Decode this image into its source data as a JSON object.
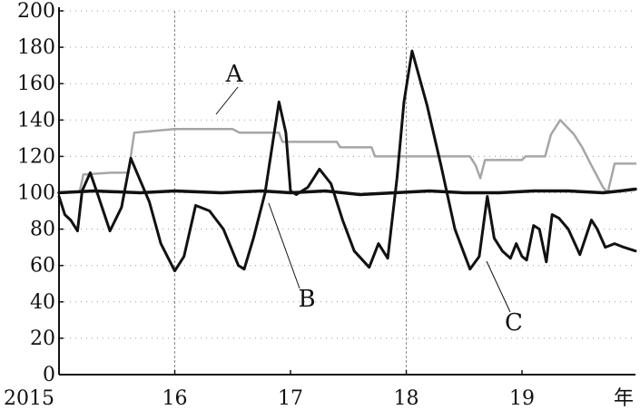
{
  "chart_data": {
    "type": "line",
    "xlabel": "年",
    "ylabel": "",
    "ylim": [
      0,
      200
    ],
    "xlim": [
      2015.0,
      2019.98
    ],
    "y_ticks": [
      "0",
      "20",
      "40",
      "60",
      "80",
      "100",
      "120",
      "140",
      "160",
      "180",
      "200"
    ],
    "x_ticks": [
      {
        "value": 2015,
        "label": "2015"
      },
      {
        "value": 2016,
        "label": "16"
      },
      {
        "value": 2017,
        "label": "17"
      },
      {
        "value": 2018,
        "label": "18"
      },
      {
        "value": 2019,
        "label": "19"
      }
    ],
    "x_axis_title": "年",
    "vertical_gridlines_at": [
      2016,
      2018
    ],
    "series": [
      {
        "name": "A",
        "color": "#a6a6a6",
        "x": [
          2015.18,
          2015.21,
          2015.45,
          2015.6,
          2015.65,
          2016.0,
          2016.5,
          2016.56,
          2016.9,
          2016.93,
          2017.4,
          2017.43,
          2017.7,
          2017.73,
          2018.55,
          2018.6,
          2018.64,
          2018.68,
          2019.0,
          2019.03,
          2019.2,
          2019.25,
          2019.33,
          2019.45,
          2019.52,
          2019.6,
          2019.7,
          2019.74,
          2019.8,
          2019.98
        ],
        "y": [
          101,
          110,
          111,
          111,
          133,
          135,
          135,
          133,
          133,
          128,
          128,
          125,
          125,
          120,
          120,
          115,
          108,
          118,
          118,
          120,
          120,
          132,
          140,
          132,
          125,
          115,
          103,
          100,
          116,
          116
        ]
      },
      {
        "name": "B",
        "color": "#111111",
        "x": [
          2015.0,
          2015.3,
          2015.7,
          2016.0,
          2016.4,
          2016.75,
          2017.0,
          2017.3,
          2017.6,
          2017.9,
          2018.2,
          2018.5,
          2018.8,
          2019.1,
          2019.4,
          2019.7,
          2019.85,
          2019.98
        ],
        "y": [
          100,
          101,
          100,
          101,
          100,
          101,
          100,
          101,
          99,
          100,
          101,
          100,
          100,
          101,
          101,
          100,
          101,
          102
        ]
      },
      {
        "name": "C",
        "color": "#111111",
        "x": [
          2015.0,
          2015.05,
          2015.1,
          2015.16,
          2015.2,
          2015.27,
          2015.34,
          2015.44,
          2015.54,
          2015.62,
          2015.68,
          2015.78,
          2015.88,
          2016.0,
          2016.08,
          2016.18,
          2016.3,
          2016.42,
          2016.55,
          2016.6,
          2016.68,
          2016.78,
          2016.9,
          2016.96,
          2017.0,
          2017.05,
          2017.15,
          2017.25,
          2017.35,
          2017.45,
          2017.55,
          2017.68,
          2017.76,
          2017.84,
          2017.92,
          2017.98,
          2018.05,
          2018.18,
          2018.3,
          2018.42,
          2018.55,
          2018.63,
          2018.7,
          2018.76,
          2018.83,
          2018.9,
          2018.95,
          2019.0,
          2019.04,
          2019.1,
          2019.15,
          2019.21,
          2019.26,
          2019.32,
          2019.4,
          2019.5,
          2019.6,
          2019.65,
          2019.72,
          2019.8,
          2019.88,
          2019.98
        ],
        "y": [
          98,
          88,
          85,
          79,
          101,
          111,
          98,
          79,
          92,
          119,
          110,
          95,
          72,
          57,
          65,
          93,
          90,
          80,
          60,
          58,
          75,
          100,
          150,
          133,
          101,
          99,
          103,
          113,
          105,
          85,
          68,
          59,
          72,
          64,
          108,
          150,
          178,
          148,
          115,
          80,
          58,
          65,
          98,
          75,
          68,
          64,
          72,
          65,
          63,
          82,
          80,
          62,
          88,
          86,
          80,
          66,
          85,
          80,
          70,
          72,
          70,
          68
        ]
      }
    ],
    "annotations": [
      "A",
      "B",
      "C"
    ]
  }
}
